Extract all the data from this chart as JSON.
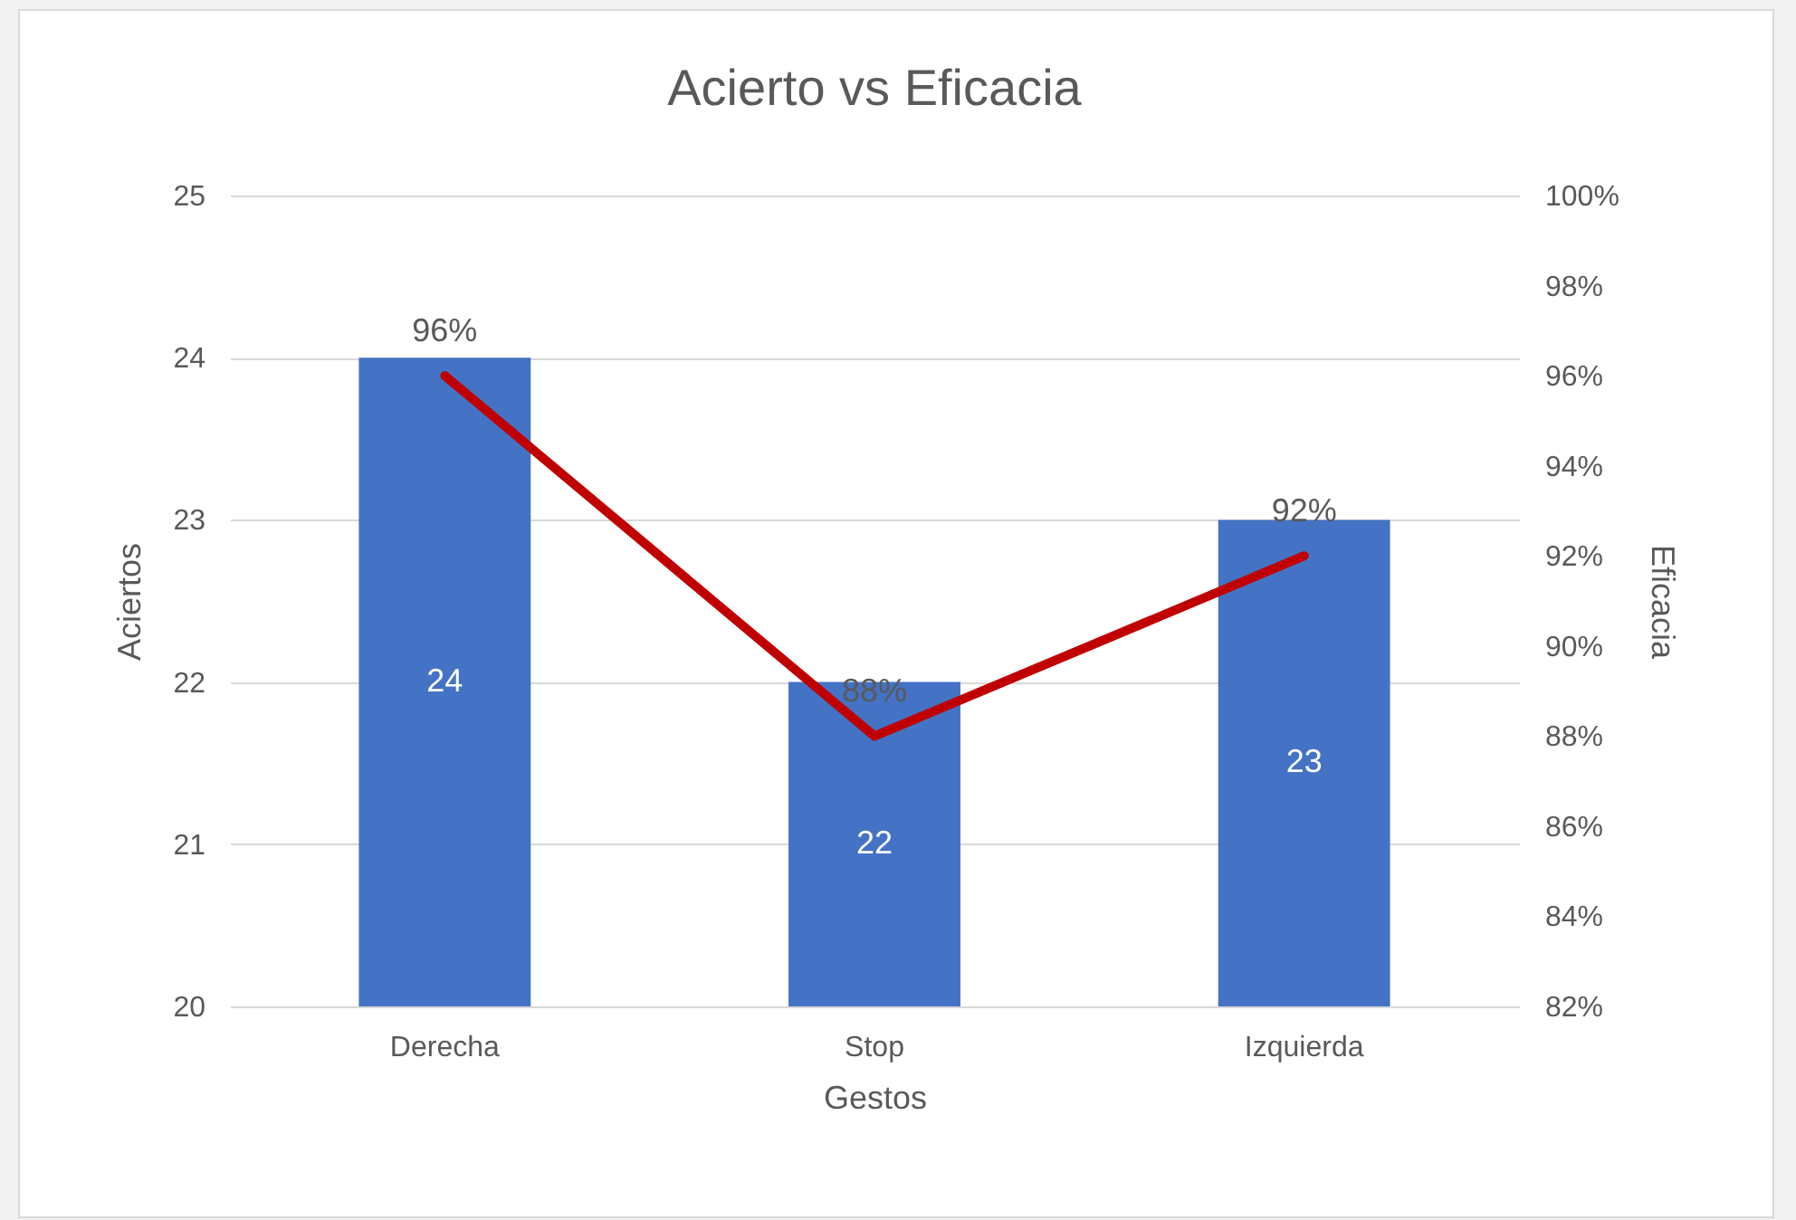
{
  "chart_data": {
    "type": "bar",
    "title": "Acierto vs Eficacia",
    "xlabel": "Gestos",
    "ylabel": "Aciertos",
    "y2label": "Eficacia",
    "categories": [
      "Derecha",
      "Stop",
      "Izquierda"
    ],
    "series": [
      {
        "color": "#4472c4",
        "values": [
          24,
          22,
          23
        ],
        "value_labels": [
          "24",
          "22",
          "23"
        ]
      },
      {
        "type": "line",
        "axis": "y2",
        "color": "#c00000",
        "values": [
          96,
          88,
          92
        ],
        "value_labels": [
          "96%",
          "88%",
          "92%"
        ]
      }
    ],
    "ylim": [
      20,
      25
    ],
    "yticks": [
      20,
      21,
      22,
      23,
      24,
      25
    ],
    "y2lim": [
      82,
      100
    ],
    "y2ticks": [
      {
        "value": 82,
        "label": "82%"
      },
      {
        "value": 84,
        "label": "84%"
      },
      {
        "value": 86,
        "label": "86%"
      },
      {
        "value": 88,
        "label": "88%"
      },
      {
        "value": 90,
        "label": "90%"
      },
      {
        "value": 92,
        "label": "92%"
      },
      {
        "value": 94,
        "label": "94%"
      },
      {
        "value": 96,
        "label": "96%"
      },
      {
        "value": 98,
        "label": "98%"
      },
      {
        "value": 100,
        "label": "100%"
      }
    ],
    "grid": "y",
    "marker": "none",
    "line_style": "solid"
  }
}
